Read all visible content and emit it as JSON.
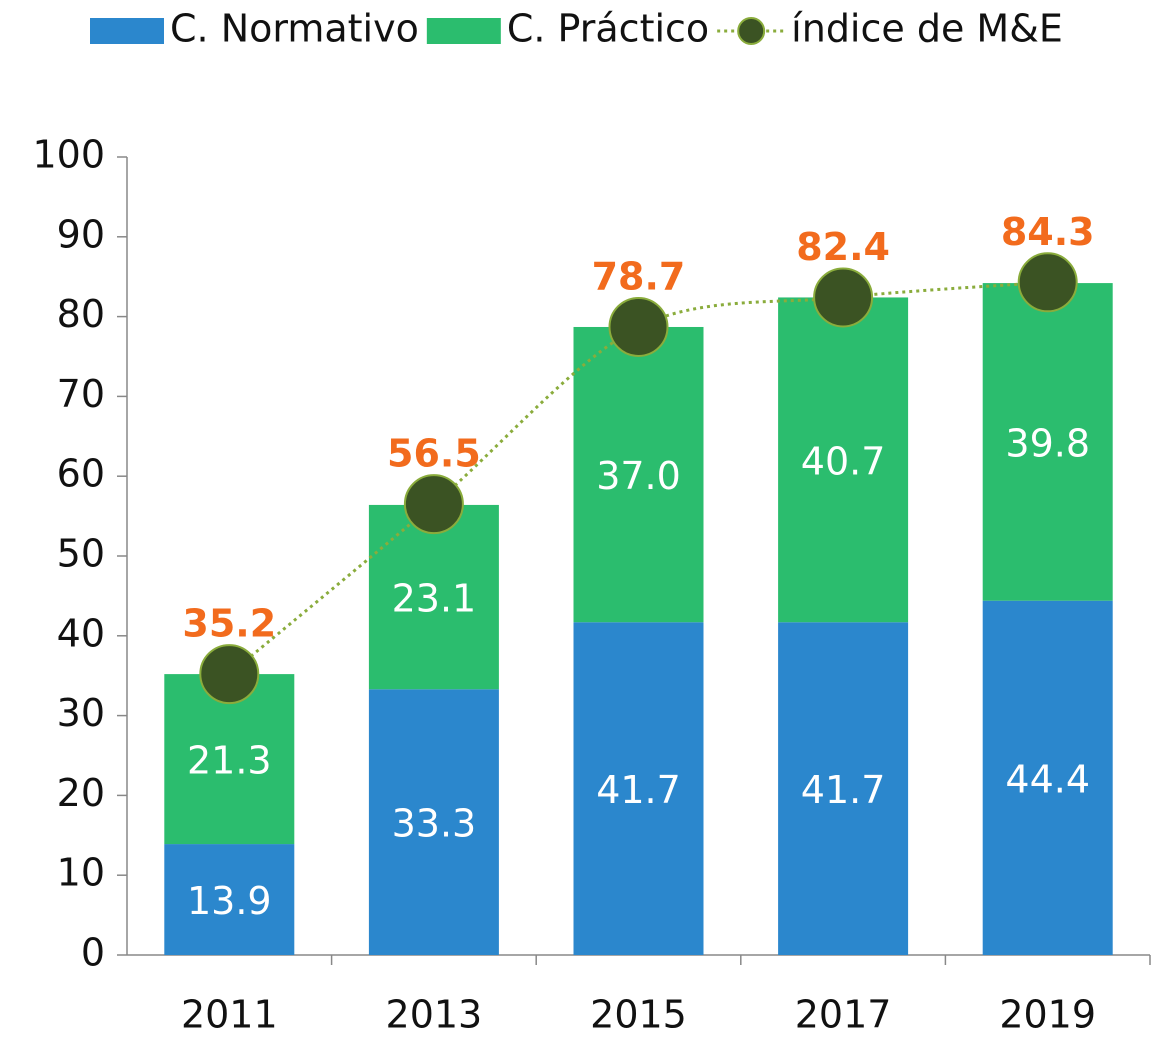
{
  "chart_data": {
    "type": "bar",
    "stacked": true,
    "categories": [
      "2011",
      "2013",
      "2015",
      "2017",
      "2019"
    ],
    "series": [
      {
        "name": "C. Normativo",
        "color": "#2b87cd",
        "values": [
          13.9,
          33.3,
          41.7,
          41.7,
          44.4
        ]
      },
      {
        "name": "C. Práctico",
        "color": "#2bbd6e",
        "values": [
          21.3,
          23.1,
          37.0,
          40.7,
          39.8
        ],
        "value_labels": [
          "21.3",
          "23.1",
          "37.0",
          "40.7",
          "39.8"
        ]
      },
      {
        "name": "índice de M&E",
        "type": "line",
        "color": "#3b5323",
        "line_color": "#8aac3c",
        "label_color": "#f26b1d",
        "values": [
          35.2,
          56.5,
          78.7,
          82.4,
          84.3
        ]
      }
    ],
    "ylim": [
      0,
      100
    ],
    "yticks": [
      0,
      10,
      20,
      30,
      40,
      50,
      60,
      70,
      80,
      90,
      100
    ],
    "legend": "top"
  }
}
